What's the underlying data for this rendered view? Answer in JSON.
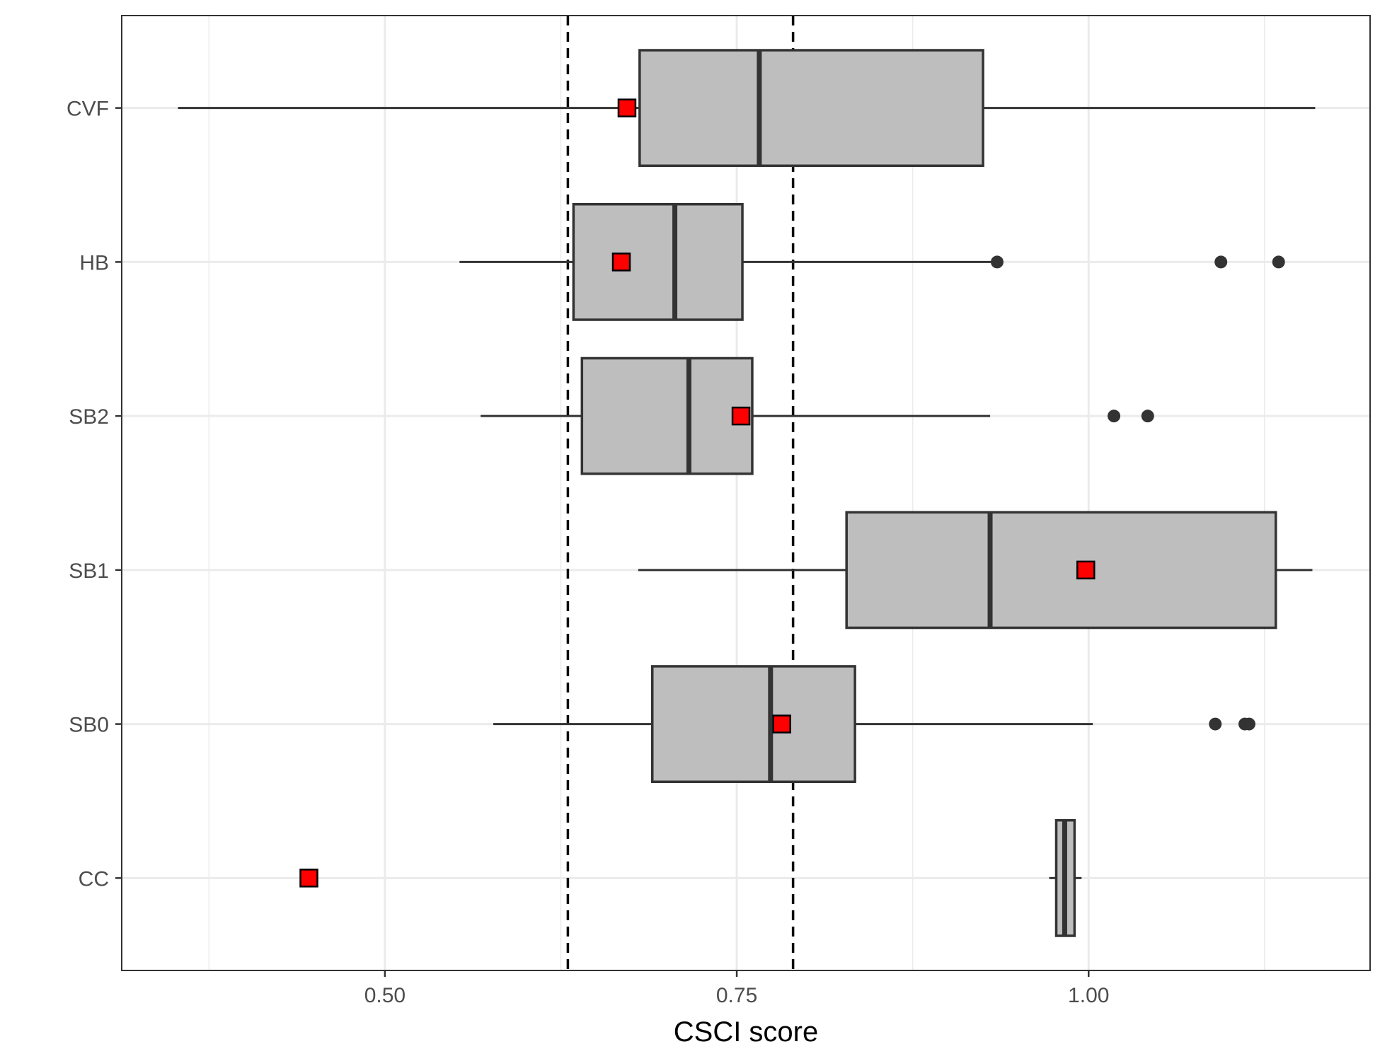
{
  "chart_data": {
    "type": "boxplot",
    "orientation": "horizontal",
    "xlabel": "CSCI score",
    "ylabel": "",
    "xlim": [
      0.313,
      1.2
    ],
    "x_ticks": [
      {
        "value": 0.5,
        "label": "0.50"
      },
      {
        "value": 0.75,
        "label": "0.75"
      },
      {
        "value": 1.0,
        "label": "1.00"
      }
    ],
    "categories": [
      "CVF",
      "HB",
      "SB2",
      "SB1",
      "SB0",
      "CC"
    ],
    "boxes": [
      {
        "category": "CVF",
        "whisker_low": 0.353,
        "q1": 0.681,
        "median": 0.766,
        "q3": 0.925,
        "whisker_high": 1.161,
        "outliers": [],
        "marker": 0.672
      },
      {
        "category": "HB",
        "whisker_low": 0.553,
        "q1": 0.634,
        "median": 0.706,
        "q3": 0.754,
        "whisker_high": 0.935,
        "outliers": [
          0.935,
          1.094,
          1.135
        ],
        "marker": 0.668
      },
      {
        "category": "SB2",
        "whisker_low": 0.568,
        "q1": 0.64,
        "median": 0.716,
        "q3": 0.761,
        "whisker_high": 0.93,
        "outliers": [
          1.018,
          1.042
        ],
        "marker": 0.753
      },
      {
        "category": "SB1",
        "whisker_low": 0.68,
        "q1": 0.828,
        "median": 0.93,
        "q3": 1.133,
        "whisker_high": 1.159,
        "outliers": [],
        "marker": 0.998
      },
      {
        "category": "SB0",
        "whisker_low": 0.577,
        "q1": 0.69,
        "median": 0.774,
        "q3": 0.834,
        "whisker_high": 1.003,
        "outliers": [
          1.09,
          1.111,
          1.114
        ],
        "marker": 0.782
      },
      {
        "category": "CC",
        "whisker_low": 0.972,
        "q1": 0.977,
        "median": 0.983,
        "q3": 0.99,
        "whisker_high": 0.995,
        "outliers": [],
        "marker": 0.446
      }
    ],
    "reference_lines": [
      0.63,
      0.79
    ],
    "grid": true,
    "colors": {
      "box_fill": "#bebebe",
      "box_stroke": "#333333",
      "marker_fill": "#ff0000",
      "marker_stroke": "#000000",
      "grid": "#ebebeb",
      "reference_line": "#000000",
      "outlier": "#333333"
    }
  }
}
